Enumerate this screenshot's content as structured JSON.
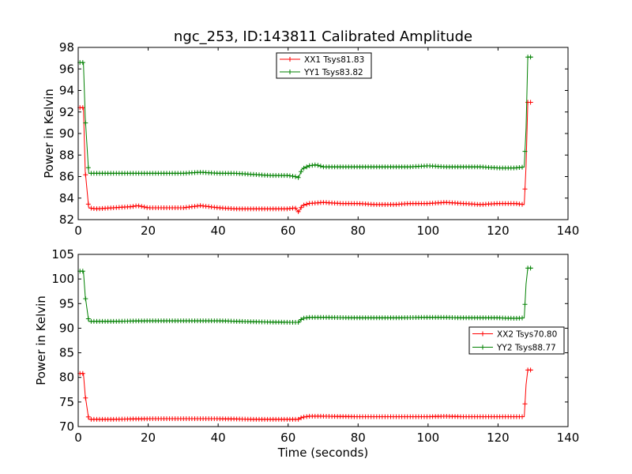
{
  "title": "ngc_253, ID:143811 Calibrated Amplitude",
  "xlabel": "Time (seconds)",
  "chart_data": [
    {
      "type": "line",
      "title": "ngc_253, ID:143811 Calibrated Amplitude",
      "xlabel": "",
      "ylabel": "Power in Kelvin",
      "xlim": [
        0,
        140
      ],
      "ylim": [
        82,
        98
      ],
      "xticks": [
        "0",
        "20",
        "40",
        "60",
        "80",
        "100",
        "120",
        "140"
      ],
      "yticks": [
        "82",
        "84",
        "86",
        "88",
        "90",
        "92",
        "94",
        "96",
        "98"
      ],
      "legend_position": "upper-center",
      "series": [
        {
          "name": "XX1 Tsys81.83",
          "color": "#ff0000",
          "x": [
            0.5,
            1.0,
            1.5,
            2,
            3,
            5,
            10,
            15,
            17,
            20,
            25,
            30,
            35,
            40,
            45,
            50,
            55,
            60,
            62,
            63,
            64,
            66,
            70,
            75,
            80,
            85,
            90,
            95,
            100,
            105,
            110,
            115,
            120,
            125,
            127.5,
            128,
            128.5,
            129,
            130
          ],
          "values": [
            92.4,
            92.4,
            92.4,
            86.5,
            83.1,
            83.0,
            83.1,
            83.2,
            83.3,
            83.1,
            83.1,
            83.1,
            83.3,
            83.1,
            83.0,
            83.0,
            83.0,
            83.0,
            83.1,
            82.7,
            83.3,
            83.5,
            83.6,
            83.5,
            83.5,
            83.4,
            83.4,
            83.5,
            83.5,
            83.6,
            83.5,
            83.4,
            83.5,
            83.5,
            83.4,
            87.0,
            92.9,
            92.9,
            92.9
          ]
        },
        {
          "name": "YY1 Tsys83.82",
          "color": "#008000",
          "x": [
            0.5,
            1.0,
            1.5,
            2,
            3,
            5,
            10,
            15,
            20,
            25,
            30,
            35,
            40,
            45,
            50,
            55,
            60,
            62,
            63,
            64,
            66,
            68,
            70,
            75,
            80,
            85,
            90,
            95,
            100,
            105,
            110,
            115,
            120,
            125,
            127.5,
            128,
            128.5,
            129,
            130
          ],
          "values": [
            96.6,
            96.6,
            96.6,
            91.5,
            86.3,
            86.3,
            86.3,
            86.3,
            86.3,
            86.3,
            86.3,
            86.4,
            86.3,
            86.3,
            86.2,
            86.1,
            86.1,
            86.0,
            85.9,
            86.7,
            87.0,
            87.1,
            86.9,
            86.9,
            86.9,
            86.9,
            86.9,
            86.9,
            87.0,
            86.9,
            86.9,
            86.9,
            86.8,
            86.8,
            86.9,
            90.5,
            97.1,
            97.1,
            97.1
          ]
        }
      ]
    },
    {
      "type": "line",
      "title": "",
      "xlabel": "Time (seconds)",
      "ylabel": "Power in Kelvin",
      "xlim": [
        0,
        140
      ],
      "ylim": [
        70,
        105
      ],
      "xticks": [
        "0",
        "20",
        "40",
        "60",
        "80",
        "100",
        "120",
        "140"
      ],
      "yticks": [
        "70",
        "75",
        "80",
        "85",
        "90",
        "95",
        "100",
        "105"
      ],
      "legend_position": "center-right",
      "series": [
        {
          "name": "XX2 Tsys70.80",
          "color": "#ff0000",
          "x": [
            0.5,
            1.0,
            1.5,
            2,
            3,
            5,
            10,
            20,
            30,
            40,
            50,
            60,
            62,
            63,
            64,
            66,
            70,
            80,
            90,
            100,
            105,
            110,
            120,
            125,
            127.5,
            128,
            128.5,
            129,
            130
          ],
          "values": [
            80.8,
            80.8,
            80.8,
            76.3,
            71.5,
            71.5,
            71.5,
            71.6,
            71.6,
            71.6,
            71.5,
            71.5,
            71.5,
            71.5,
            71.9,
            72.1,
            72.1,
            72.0,
            72.0,
            72.0,
            72.1,
            72.0,
            72.0,
            72.0,
            72.0,
            78.5,
            81.5,
            81.5,
            81.5
          ]
        },
        {
          "name": "YY2 Tsys88.77",
          "color": "#008000",
          "x": [
            0.5,
            1.0,
            1.5,
            2,
            3,
            5,
            10,
            20,
            30,
            40,
            50,
            60,
            62,
            63,
            64,
            66,
            70,
            80,
            90,
            100,
            105,
            110,
            120,
            125,
            127.5,
            128,
            128.5,
            129,
            130
          ],
          "values": [
            101.6,
            101.6,
            101.6,
            96.5,
            91.4,
            91.4,
            91.4,
            91.5,
            91.5,
            91.5,
            91.3,
            91.2,
            91.2,
            91.2,
            92.0,
            92.2,
            92.2,
            92.1,
            92.1,
            92.2,
            92.2,
            92.1,
            92.1,
            92.0,
            92.1,
            99.0,
            102.2,
            102.2,
            102.2
          ]
        }
      ]
    }
  ]
}
